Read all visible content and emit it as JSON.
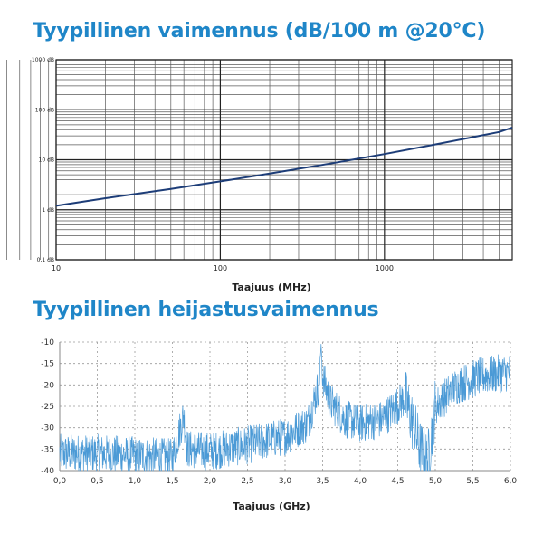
{
  "chart_data": [
    {
      "type": "line",
      "title": "Tyypillinen vaimennus (dB/100 m @20°C)",
      "xlabel": "Taajuus (MHz)",
      "ylabel": "",
      "x_scale": "log",
      "y_scale": "log",
      "xlim": [
        10,
        6000
      ],
      "ylim": [
        0.1,
        1000
      ],
      "x_ticks": [
        10,
        100,
        1000
      ],
      "x_tick_labels": [
        "10",
        "100",
        "1000"
      ],
      "y_ticks": [
        0.1,
        1,
        10,
        100,
        1000
      ],
      "y_tick_labels": [
        "0,1 dB",
        "1 dB",
        "10 dB",
        "100 dB",
        "1000 dB"
      ],
      "grid": true,
      "line_color": "#1d3d78",
      "series": [
        {
          "x": [
            10,
            20,
            50,
            100,
            200,
            500,
            1000,
            2000,
            5000,
            6000
          ],
          "y": [
            1.2,
            1.7,
            2.6,
            3.7,
            5.3,
            8.7,
            13,
            20,
            36,
            44
          ]
        }
      ]
    },
    {
      "type": "line",
      "title": "Tyypillinen heijastusvaimennus",
      "xlabel": "Taajuus (GHz)",
      "ylabel": "",
      "xlim": [
        0,
        6
      ],
      "ylim": [
        -40,
        -10
      ],
      "x_ticks": [
        0,
        0.5,
        1,
        1.5,
        2,
        2.5,
        3,
        3.5,
        4,
        4.5,
        5,
        5.5,
        6
      ],
      "x_tick_labels": [
        "0,0",
        "0,5",
        "1,0",
        "1,5",
        "2,0",
        "2,5",
        "3,0",
        "3,5",
        "4,0",
        "4,5",
        "5,0",
        "5,5",
        "6,0"
      ],
      "y_ticks": [
        -10,
        -15,
        -20,
        -25,
        -30,
        -35,
        -40
      ],
      "y_tick_labels": [
        "-10",
        "-15",
        "-20",
        "-25",
        "-30",
        "-35",
        "-40"
      ],
      "grid": true,
      "line_color": "#4b9ad6",
      "series": [
        {
          "x": [
            0,
            0.5,
            1.0,
            1.5,
            1.65,
            1.7,
            2.0,
            2.5,
            3.0,
            3.3,
            3.45,
            3.48,
            3.5,
            3.6,
            3.8,
            4.0,
            4.3,
            4.6,
            4.8,
            4.9,
            5.0,
            5.3,
            5.6,
            6.0
          ],
          "y": [
            -36,
            -36,
            -36.5,
            -37,
            -27,
            -35,
            -35.5,
            -34,
            -32,
            -29,
            -20,
            -10.5,
            -18,
            -24,
            -28,
            -29,
            -28,
            -23,
            -35,
            -38,
            -25,
            -20,
            -18,
            -17
          ]
        }
      ]
    }
  ]
}
